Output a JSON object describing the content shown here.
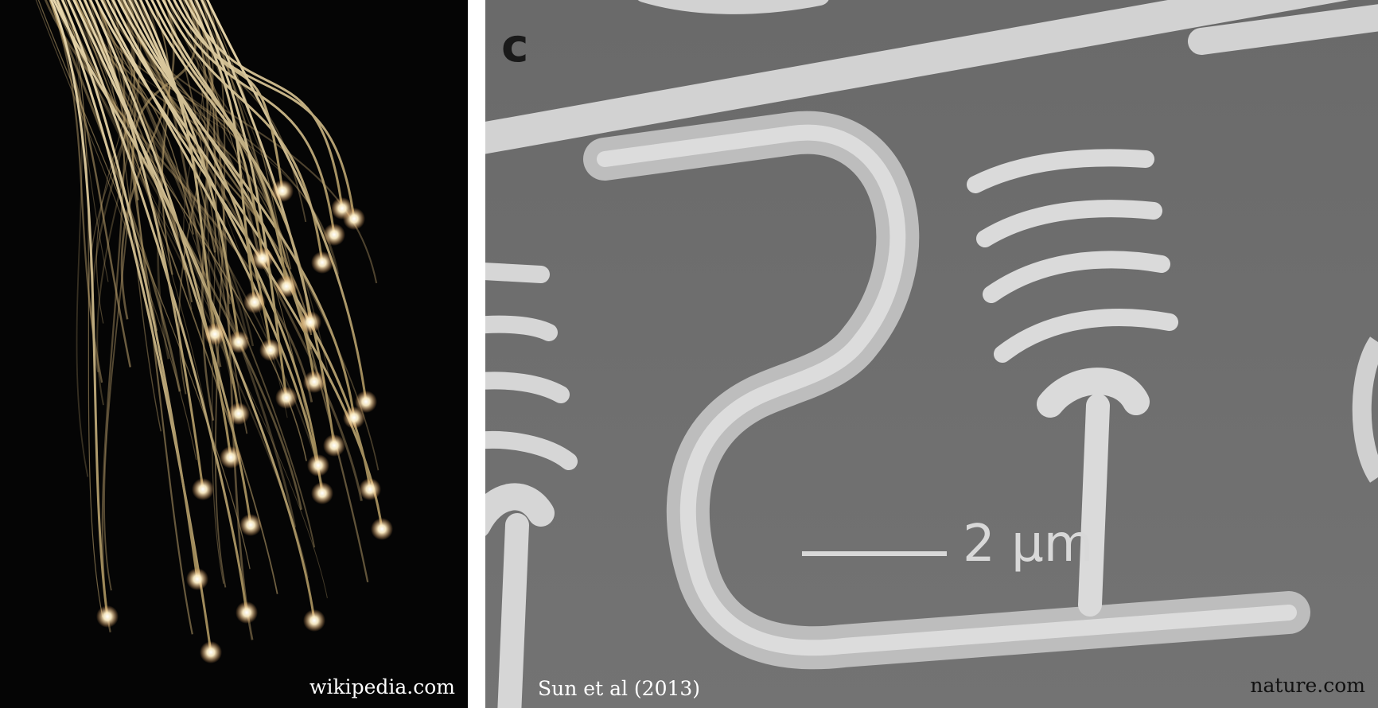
{
  "panels": {
    "left": {
      "caption": "wikipedia.com",
      "subject": "optical-fiber-bundle"
    },
    "right": {
      "panel_letter": "c",
      "scale_bar_label": "2 µm",
      "author_caption": "Sun et al (2013)",
      "source_caption": "nature.com",
      "subject": "silicon-photonic-microstructure"
    }
  },
  "colors": {
    "left_background": "#050505",
    "fiber_strand": "#c9b07a",
    "fiber_glow": "#fff3d6",
    "right_background": "#6e6e6e",
    "waveguide": "#c8c8c8",
    "divider": "#ffffff"
  }
}
